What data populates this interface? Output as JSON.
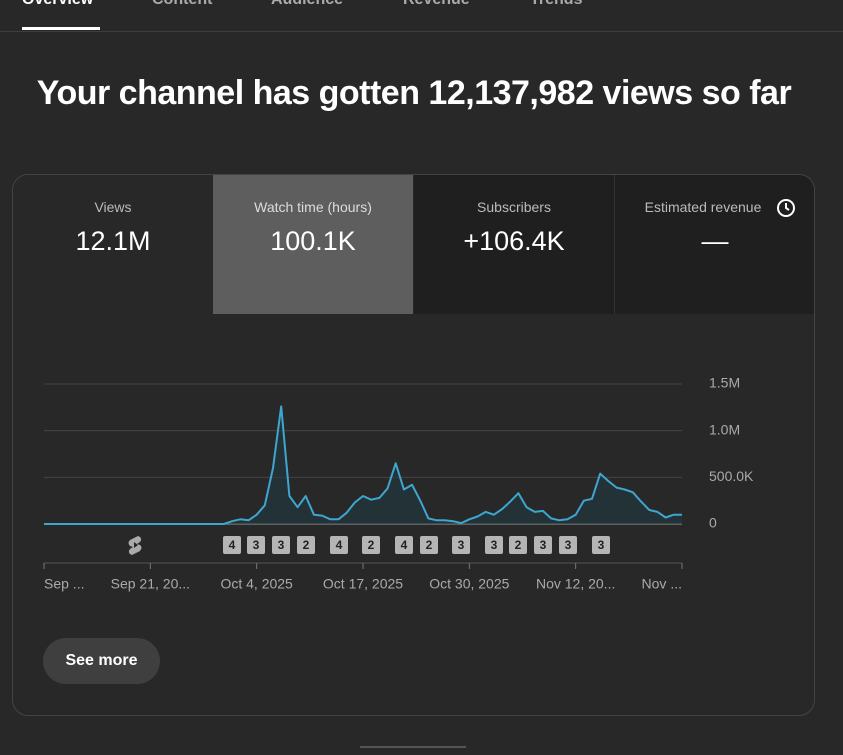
{
  "tabs": [
    "Overview",
    "Content",
    "Audience",
    "Revenue",
    "Trends"
  ],
  "headline": "Your channel has gotten 12,137,982 views so far",
  "metrics": [
    {
      "label": "Views",
      "value": "12.1M"
    },
    {
      "label": "Watch time (hours)",
      "value": "100.1K"
    },
    {
      "label": "Subscribers",
      "value": "+106.4K"
    },
    {
      "label": "Estimated revenue",
      "value": "—"
    }
  ],
  "chart_data": {
    "type": "line",
    "color": "#3ea6cf",
    "categories": [
      "Sep ...",
      null,
      null,
      null,
      null,
      null,
      null,
      null,
      null,
      null,
      null,
      null,
      null,
      "Sep 21, 20...",
      null,
      null,
      null,
      null,
      null,
      null,
      null,
      null,
      null,
      null,
      null,
      null,
      "Oct 4, 2025",
      null,
      null,
      null,
      null,
      null,
      null,
      null,
      null,
      null,
      null,
      null,
      null,
      "Oct 17, 2025",
      null,
      null,
      null,
      null,
      null,
      null,
      null,
      null,
      null,
      null,
      null,
      null,
      "Oct 30, 2025",
      null,
      null,
      null,
      null,
      null,
      null,
      null,
      null,
      null,
      null,
      null,
      null,
      "Nov 12, 20...",
      null,
      null,
      null,
      null,
      null,
      null,
      null,
      null,
      null,
      null,
      null,
      null,
      "Nov ..."
    ],
    "values": [
      0,
      0,
      0,
      0,
      0,
      0,
      0,
      0,
      0,
      0,
      0,
      0,
      0,
      0,
      0,
      0,
      0,
      0,
      0,
      0,
      0,
      0,
      0,
      30000,
      50000,
      40000,
      100000,
      200000,
      600000,
      1260000,
      300000,
      180000,
      300000,
      100000,
      90000,
      50000,
      50000,
      120000,
      230000,
      300000,
      260000,
      280000,
      380000,
      650000,
      370000,
      420000,
      250000,
      60000,
      40000,
      40000,
      30000,
      10000,
      50000,
      80000,
      130000,
      100000,
      160000,
      240000,
      330000,
      180000,
      130000,
      140000,
      60000,
      40000,
      50000,
      100000,
      250000,
      270000,
      540000,
      460000,
      390000,
      370000,
      340000,
      240000,
      150000,
      130000,
      70000,
      100000,
      100000
    ],
    "ylim": [
      0,
      1500000
    ],
    "yticks": [
      0,
      {
        "value": 500000,
        "label": "500.0K"
      },
      {
        "value": 1000000,
        "label": "1.0M"
      },
      {
        "value": 1500000,
        "label": "1.5M"
      }
    ],
    "grid": true,
    "markers": [
      "4",
      "3",
      "3",
      "2",
      "4",
      "2",
      "4",
      "2",
      "3",
      "3",
      "2",
      "3",
      "3",
      "3"
    ]
  },
  "see_more": "See more"
}
